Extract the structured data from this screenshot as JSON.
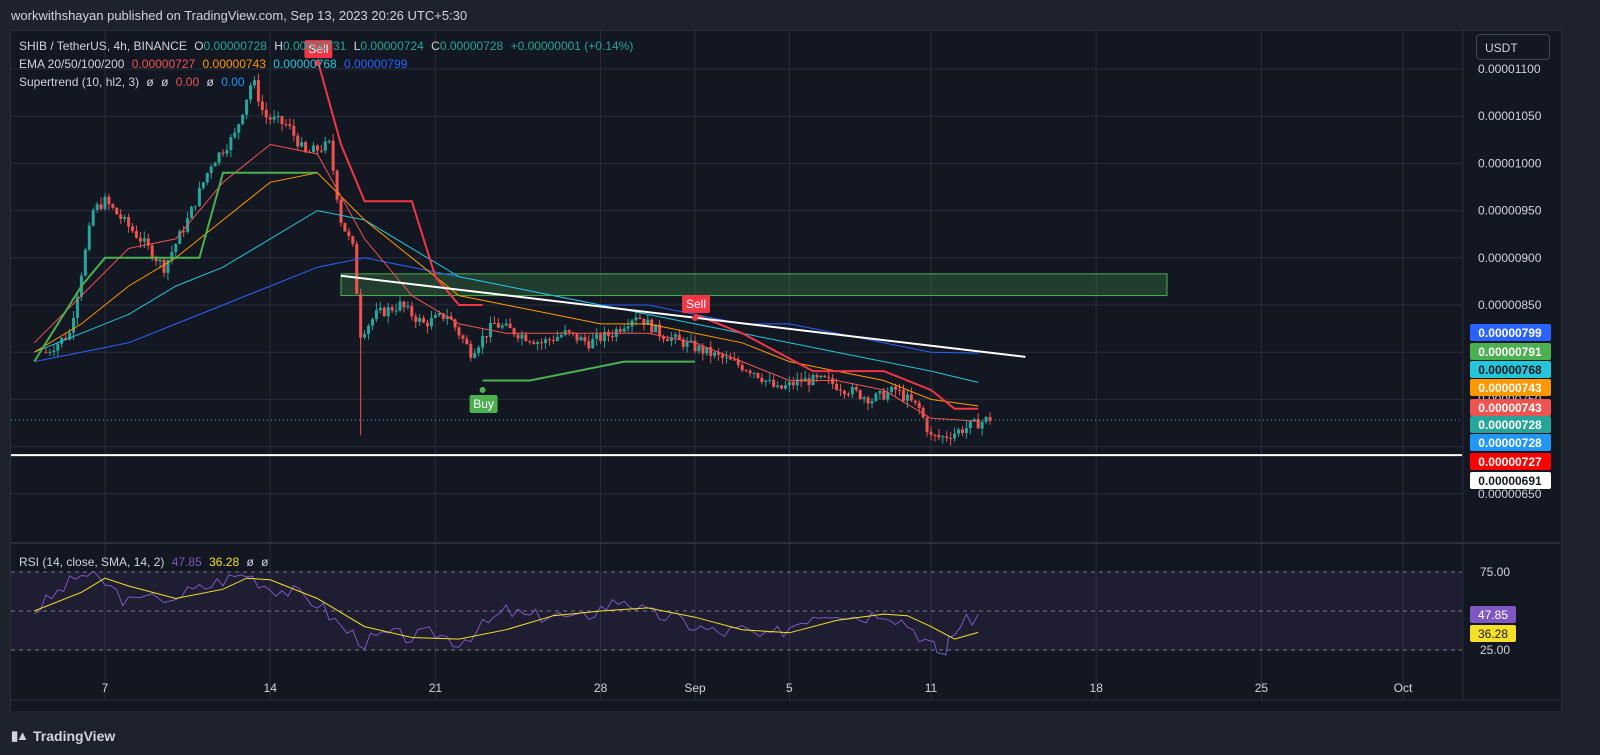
{
  "header": {
    "published_by": "workwithshayan published on TradingView.com, Sep 13, 2023 20:26 UTC+5:30"
  },
  "footer": {
    "brand": "TradingView"
  },
  "legend": {
    "symbol": "SHIB / TetherUS, 4h, BINANCE",
    "o_label": "O",
    "o_value": "0.00000728",
    "h_label": "H",
    "h_value": "0.00000731",
    "l_label": "L",
    "l_value": "0.00000724",
    "c_label": "C",
    "c_value": "0.00000728",
    "change": "+0.00000001 (+0.14%)",
    "ema_label": "EMA 20/50/100/200",
    "ema20": "0.00000727",
    "ema50": "0.00000743",
    "ema100": "0.00000768",
    "ema200": "0.00000799",
    "supertrend_label": "Supertrend (10, hl2, 3)",
    "st_v1": "ø",
    "st_v2": "ø",
    "st_v3": "0.00",
    "st_v4": "ø",
    "st_v5": "0.00",
    "rsi_label": "RSI (14, close, SMA, 14, 2)",
    "rsi_value": "47.85",
    "rsi_sma": "36.28",
    "rsi_v3": "ø",
    "rsi_v4": "ø"
  },
  "currency_button": "USDT",
  "colors": {
    "up": "#26a69a",
    "down": "#ef5350",
    "ema20": "#ef5350",
    "ema50": "#ff9800",
    "ema100": "#26c6da",
    "ema200": "#2962ff",
    "st_up": "#4caf50",
    "st_down": "#f23645",
    "rsi": "#7e57c2",
    "rsi_sma": "#f5e027"
  },
  "chart_data": {
    "type": "candlestick",
    "price_axis_labels": [
      "0.00001100",
      "0.00001050",
      "0.00001000",
      "0.00000950",
      "0.00000900",
      "0.00000850",
      "0.00000800",
      "0.00000750",
      "0.00000700",
      "0.00000650"
    ],
    "time_axis_labels": [
      {
        "label": "7",
        "date": "2023-08-07"
      },
      {
        "label": "14",
        "date": "2023-08-14"
      },
      {
        "label": "21",
        "date": "2023-08-21"
      },
      {
        "label": "28",
        "date": "2023-08-28"
      },
      {
        "label": "Sep",
        "date": "2023-09-01"
      },
      {
        "label": "5",
        "date": "2023-09-05"
      },
      {
        "label": "11",
        "date": "2023-09-11"
      },
      {
        "label": "18",
        "date": "2023-09-18"
      },
      {
        "label": "25",
        "date": "2023-09-25"
      },
      {
        "label": "Oct",
        "date": "2023-10-01"
      }
    ],
    "price_tags": [
      {
        "value": "0.00000799",
        "color": "#2962ff",
        "text_color": "#ffffff"
      },
      {
        "value": "0.00000791",
        "color": "#4caf50",
        "text_color": "#ffffff"
      },
      {
        "value": "0.00000768",
        "color": "#26c6da",
        "text_color": "#131722"
      },
      {
        "value": "0.00000743",
        "color": "#ff9800",
        "text_color": "#ffffff"
      },
      {
        "value": "0.00000743",
        "color": "#ef5350",
        "text_color": "#ffffff"
      },
      {
        "value": "0.00000728",
        "color": "#26a69a",
        "text_color": "#ffffff"
      },
      {
        "value": "0.00000728",
        "color": "#2196f3",
        "text_color": "#ffffff"
      },
      {
        "value": "0.00000727",
        "color": "#ff0000",
        "text_color": "#ffffff"
      },
      {
        "value": "0.00000691",
        "color": "#ffffff",
        "text_color": "#131722"
      }
    ],
    "series_close_points": [
      [
        "2023-08-04T12:00",
        8e-06
      ],
      [
        "2023-08-05T12:00",
        8.2e-06
      ],
      [
        "2023-08-06T12:00",
        9.5e-06
      ],
      [
        "2023-08-07T00:00",
        9.6e-06
      ],
      [
        "2023-08-08T12:00",
        9.2e-06
      ],
      [
        "2023-08-09T12:00",
        8.9e-06
      ],
      [
        "2023-08-10T12:00",
        9.4e-06
      ],
      [
        "2023-08-11T12:00",
        1e-05
      ],
      [
        "2023-08-12T12:00",
        1.03e-05
      ],
      [
        "2023-08-13T06:00",
        1.09e-05
      ],
      [
        "2023-08-13T18:00",
        1.05e-05
      ],
      [
        "2023-08-14T18:00",
        1.04e-05
      ],
      [
        "2023-08-15T12:00",
        1.01e-05
      ],
      [
        "2023-08-16T12:00",
        1.02e-05
      ],
      [
        "2023-08-17T00:00",
        9.4e-06
      ],
      [
        "2023-08-17T12:00",
        9.1e-06
      ],
      [
        "2023-08-17T20:00",
        8.2e-06
      ],
      [
        "2023-08-18T12:00",
        8.4e-06
      ],
      [
        "2023-08-19T12:00",
        8.5e-06
      ],
      [
        "2023-08-20T12:00",
        8.3e-06
      ],
      [
        "2023-08-21T12:00",
        8.4e-06
      ],
      [
        "2023-08-22T12:00",
        8e-06
      ],
      [
        "2023-08-23T12:00",
        8.3e-06
      ],
      [
        "2023-08-24T12:00",
        8.2e-06
      ],
      [
        "2023-08-25T12:00",
        8.1e-06
      ],
      [
        "2023-08-26T12:00",
        8.2e-06
      ],
      [
        "2023-08-27T12:00",
        8.1e-06
      ],
      [
        "2023-08-28T12:00",
        8.2e-06
      ],
      [
        "2023-08-29T12:00",
        8.4e-06
      ],
      [
        "2023-08-30T12:00",
        8.2e-06
      ],
      [
        "2023-08-31T12:00",
        8.1e-06
      ],
      [
        "2023-09-01T12:00",
        8e-06
      ],
      [
        "2023-09-02T12:00",
        7.9e-06
      ],
      [
        "2023-09-03T12:00",
        7.8e-06
      ],
      [
        "2023-09-04T12:00",
        7.6e-06
      ],
      [
        "2023-09-05T12:00",
        7.7e-06
      ],
      [
        "2023-09-06T12:00",
        7.7e-06
      ],
      [
        "2023-09-07T12:00",
        7.6e-06
      ],
      [
        "2023-09-08T12:00",
        7.5e-06
      ],
      [
        "2023-09-09T12:00",
        7.6e-06
      ],
      [
        "2023-09-10T12:00",
        7.4e-06
      ],
      [
        "2023-09-11T00:00",
        7.1e-06
      ],
      [
        "2023-09-11T12:00",
        7.1e-06
      ],
      [
        "2023-09-12T12:00",
        7.2e-06
      ],
      [
        "2023-09-13T12:00",
        7.3e-06
      ]
    ],
    "ema20": [
      [
        "2023-08-04",
        8.1e-06
      ],
      [
        "2023-08-06",
        8.6e-06
      ],
      [
        "2023-08-08",
        9.1e-06
      ],
      [
        "2023-08-10",
        9.2e-06
      ],
      [
        "2023-08-12",
        9.8e-06
      ],
      [
        "2023-08-14",
        1.02e-05
      ],
      [
        "2023-08-16",
        1.01e-05
      ],
      [
        "2023-08-18",
        9.2e-06
      ],
      [
        "2023-08-20",
        8.6e-06
      ],
      [
        "2023-08-22",
        8.3e-06
      ],
      [
        "2023-08-24",
        8.2e-06
      ],
      [
        "2023-08-26",
        8.2e-06
      ],
      [
        "2023-08-28",
        8.2e-06
      ],
      [
        "2023-08-30",
        8.2e-06
      ],
      [
        "2023-09-01",
        8.1e-06
      ],
      [
        "2023-09-03",
        7.9e-06
      ],
      [
        "2023-09-05",
        7.7e-06
      ],
      [
        "2023-09-07",
        7.7e-06
      ],
      [
        "2023-09-09",
        7.6e-06
      ],
      [
        "2023-09-11",
        7.3e-06
      ],
      [
        "2023-09-13",
        7.27e-06
      ]
    ],
    "ema50": [
      [
        "2023-08-04",
        8e-06
      ],
      [
        "2023-08-06",
        8.3e-06
      ],
      [
        "2023-08-08",
        8.7e-06
      ],
      [
        "2023-08-10",
        9e-06
      ],
      [
        "2023-08-12",
        9.4e-06
      ],
      [
        "2023-08-14",
        9.8e-06
      ],
      [
        "2023-08-16",
        9.9e-06
      ],
      [
        "2023-08-18",
        9.4e-06
      ],
      [
        "2023-08-20",
        9e-06
      ],
      [
        "2023-08-22",
        8.6e-06
      ],
      [
        "2023-08-24",
        8.5e-06
      ],
      [
        "2023-08-26",
        8.4e-06
      ],
      [
        "2023-08-28",
        8.3e-06
      ],
      [
        "2023-08-30",
        8.3e-06
      ],
      [
        "2023-09-01",
        8.2e-06
      ],
      [
        "2023-09-03",
        8.1e-06
      ],
      [
        "2023-09-05",
        7.9e-06
      ],
      [
        "2023-09-07",
        7.8e-06
      ],
      [
        "2023-09-09",
        7.7e-06
      ],
      [
        "2023-09-11",
        7.5e-06
      ],
      [
        "2023-09-13",
        7.43e-06
      ]
    ],
    "ema100": [
      [
        "2023-08-04",
        8e-06
      ],
      [
        "2023-08-06",
        8.2e-06
      ],
      [
        "2023-08-08",
        8.4e-06
      ],
      [
        "2023-08-10",
        8.7e-06
      ],
      [
        "2023-08-12",
        8.9e-06
      ],
      [
        "2023-08-14",
        9.2e-06
      ],
      [
        "2023-08-16",
        9.5e-06
      ],
      [
        "2023-08-18",
        9.4e-06
      ],
      [
        "2023-08-20",
        9.1e-06
      ],
      [
        "2023-08-22",
        8.8e-06
      ],
      [
        "2023-08-24",
        8.7e-06
      ],
      [
        "2023-08-26",
        8.6e-06
      ],
      [
        "2023-08-28",
        8.5e-06
      ],
      [
        "2023-08-30",
        8.4e-06
      ],
      [
        "2023-09-01",
        8.3e-06
      ],
      [
        "2023-09-03",
        8.2e-06
      ],
      [
        "2023-09-05",
        8.1e-06
      ],
      [
        "2023-09-07",
        8e-06
      ],
      [
        "2023-09-09",
        7.9e-06
      ],
      [
        "2023-09-11",
        7.8e-06
      ],
      [
        "2023-09-13",
        7.68e-06
      ]
    ],
    "ema200": [
      [
        "2023-08-04",
        7.9e-06
      ],
      [
        "2023-08-06",
        8e-06
      ],
      [
        "2023-08-08",
        8.1e-06
      ],
      [
        "2023-08-10",
        8.3e-06
      ],
      [
        "2023-08-12",
        8.5e-06
      ],
      [
        "2023-08-14",
        8.7e-06
      ],
      [
        "2023-08-16",
        8.9e-06
      ],
      [
        "2023-08-18",
        9e-06
      ],
      [
        "2023-08-20",
        8.9e-06
      ],
      [
        "2023-08-22",
        8.8e-06
      ],
      [
        "2023-08-24",
        8.7e-06
      ],
      [
        "2023-08-26",
        8.6e-06
      ],
      [
        "2023-08-28",
        8.5e-06
      ],
      [
        "2023-08-30",
        8.5e-06
      ],
      [
        "2023-09-01",
        8.4e-06
      ],
      [
        "2023-09-03",
        8.3e-06
      ],
      [
        "2023-09-05",
        8.3e-06
      ],
      [
        "2023-09-07",
        8.2e-06
      ],
      [
        "2023-09-09",
        8.1e-06
      ],
      [
        "2023-09-11",
        8e-06
      ],
      [
        "2023-09-13",
        7.99e-06
      ]
    ],
    "supertrend_up": [
      [
        "2023-08-04",
        7.9e-06
      ],
      [
        "2023-08-06",
        8.7e-06
      ],
      [
        "2023-08-07",
        9e-06
      ],
      [
        "2023-08-11",
        9e-06
      ],
      [
        "2023-08-12",
        9.9e-06
      ],
      [
        "2023-08-16",
        9.9e-06
      ],
      [
        "2023-08-23",
        7.7e-06
      ],
      [
        "2023-08-25",
        7.7e-06
      ],
      [
        "2023-08-27",
        7.8e-06
      ],
      [
        "2023-08-29",
        7.9e-06
      ],
      [
        "2023-09-01",
        7.9e-06
      ]
    ],
    "supertrend_down": [
      [
        "2023-08-16",
        1.11e-05
      ],
      [
        "2023-08-17",
        1.02e-05
      ],
      [
        "2023-08-18",
        9.6e-06
      ],
      [
        "2023-08-20",
        9.6e-06
      ],
      [
        "2023-08-21",
        8.8e-06
      ],
      [
        "2023-08-22",
        8.5e-06
      ],
      [
        "2023-08-23",
        8.5e-06
      ],
      [
        "2023-09-01",
        8.4e-06
      ],
      [
        "2023-09-03",
        8.2e-06
      ],
      [
        "2023-09-06",
        7.8e-06
      ],
      [
        "2023-09-09",
        7.8e-06
      ],
      [
        "2023-09-11",
        7.6e-06
      ],
      [
        "2023-09-12",
        7.4e-06
      ],
      [
        "2023-09-13",
        7.4e-06
      ]
    ],
    "signals": [
      {
        "label": "Sell",
        "date": "2023-08-16",
        "price": 1.12e-05
      },
      {
        "label": "Buy",
        "date": "2023-08-23",
        "price": 7.6e-06
      },
      {
        "label": "Sell",
        "date": "2023-09-01",
        "price": 8.5e-06
      }
    ],
    "resistance_zone": {
      "from": "2023-08-17",
      "to": "2023-09-21",
      "low": 8.6e-06,
      "high": 8.83e-06
    },
    "trendline": {
      "from": [
        "2023-08-17",
        8.81e-06
      ],
      "to": [
        "2023-09-15",
        7.95e-06
      ]
    },
    "support_line": 6.91e-06,
    "last_price": 7.28e-06,
    "rsi": {
      "levels": [
        "75.00",
        "25.00"
      ],
      "middle": 50,
      "rsi_points": [
        [
          "2023-08-04",
          50
        ],
        [
          "2023-08-05",
          62
        ],
        [
          "2023-08-06",
          74
        ],
        [
          "2023-08-07",
          68
        ],
        [
          "2023-08-08",
          55
        ],
        [
          "2023-08-10",
          60
        ],
        [
          "2023-08-11",
          64
        ],
        [
          "2023-08-12",
          70
        ],
        [
          "2023-08-13",
          74
        ],
        [
          "2023-08-14",
          65
        ],
        [
          "2023-08-15",
          62
        ],
        [
          "2023-08-16",
          55
        ],
        [
          "2023-08-17",
          40
        ],
        [
          "2023-08-18",
          30
        ],
        [
          "2023-08-19",
          35
        ],
        [
          "2023-08-20",
          33
        ],
        [
          "2023-08-21",
          36
        ],
        [
          "2023-08-22",
          30
        ],
        [
          "2023-08-23",
          40
        ],
        [
          "2023-08-24",
          50
        ],
        [
          "2023-08-25",
          46
        ],
        [
          "2023-08-26",
          48
        ],
        [
          "2023-08-27",
          44
        ],
        [
          "2023-08-28",
          52
        ],
        [
          "2023-08-29",
          58
        ],
        [
          "2023-08-30",
          48
        ],
        [
          "2023-08-31",
          46
        ],
        [
          "2023-09-01",
          40
        ],
        [
          "2023-09-02",
          36
        ],
        [
          "2023-09-03",
          38
        ],
        [
          "2023-09-04",
          32
        ],
        [
          "2023-09-05",
          40
        ],
        [
          "2023-09-06",
          48
        ],
        [
          "2023-09-07",
          50
        ],
        [
          "2023-09-08",
          46
        ],
        [
          "2023-09-09",
          50
        ],
        [
          "2023-09-10",
          42
        ],
        [
          "2023-09-11",
          28
        ],
        [
          "2023-09-11T12:00",
          22
        ],
        [
          "2023-09-12",
          38
        ],
        [
          "2023-09-13",
          47.85
        ]
      ],
      "sma_points": [
        [
          "2023-08-04",
          50
        ],
        [
          "2023-08-06",
          62
        ],
        [
          "2023-08-07",
          71
        ],
        [
          "2023-08-08",
          66
        ],
        [
          "2023-08-10",
          58
        ],
        [
          "2023-08-12",
          64
        ],
        [
          "2023-08-13",
          71
        ],
        [
          "2023-08-14",
          70
        ],
        [
          "2023-08-16",
          58
        ],
        [
          "2023-08-18",
          40
        ],
        [
          "2023-08-20",
          33
        ],
        [
          "2023-08-22",
          32
        ],
        [
          "2023-08-24",
          38
        ],
        [
          "2023-08-26",
          47
        ],
        [
          "2023-08-28",
          50
        ],
        [
          "2023-08-30",
          52
        ],
        [
          "2023-09-01",
          46
        ],
        [
          "2023-09-03",
          38
        ],
        [
          "2023-09-05",
          36
        ],
        [
          "2023-09-07",
          44
        ],
        [
          "2023-09-09",
          48
        ],
        [
          "2023-09-10",
          47
        ],
        [
          "2023-09-11",
          40
        ],
        [
          "2023-09-12",
          32
        ],
        [
          "2023-09-13",
          36.28
        ]
      ]
    }
  }
}
